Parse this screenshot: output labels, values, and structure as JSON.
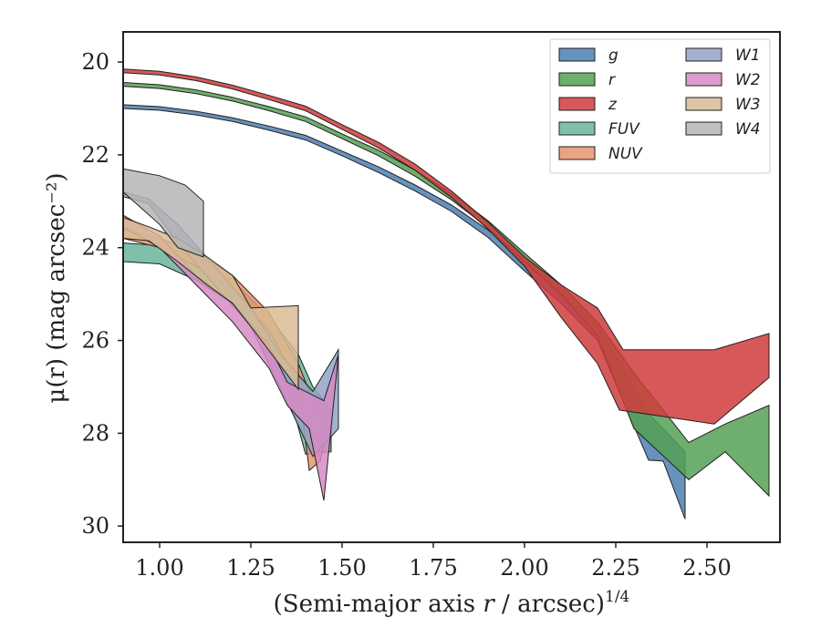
{
  "chart_data": {
    "type": "area",
    "xlabel_main": "(Semi-major axis ",
    "xlabel_var": "r",
    "xlabel_rest": " / arcsec)",
    "xlabel_exp": "1/4",
    "ylabel": "μ(r) (mag arcsec⁻²)",
    "xlim": [
      0.9,
      2.7
    ],
    "ylim": [
      30.35,
      19.35
    ],
    "y_inverted": true,
    "xticks": [
      "1.00",
      "1.25",
      "1.50",
      "1.75",
      "2.00",
      "2.25",
      "2.50"
    ],
    "xtick_values": [
      1.0,
      1.25,
      1.5,
      1.75,
      2.0,
      2.25,
      2.5
    ],
    "yticks": [
      "20",
      "22",
      "24",
      "26",
      "28",
      "30"
    ],
    "ytick_values": [
      20,
      22,
      24,
      26,
      28,
      30
    ],
    "grid": false,
    "legend_position": "top-right",
    "series": [
      {
        "name": "g",
        "color": "#4c7fb0",
        "upper": [
          [
            0.9,
            20.92
          ],
          [
            1.0,
            20.96
          ],
          [
            1.1,
            21.06
          ],
          [
            1.2,
            21.2
          ],
          [
            1.3,
            21.38
          ],
          [
            1.4,
            21.58
          ],
          [
            1.5,
            21.92
          ],
          [
            1.6,
            22.26
          ],
          [
            1.7,
            22.65
          ],
          [
            1.8,
            23.08
          ],
          [
            1.9,
            23.62
          ],
          [
            2.0,
            24.27
          ],
          [
            2.1,
            24.9
          ],
          [
            2.2,
            25.7
          ],
          [
            2.27,
            26.6
          ],
          [
            2.33,
            27.5
          ],
          [
            2.38,
            27.9
          ],
          [
            2.44,
            28.4
          ]
        ],
        "lower": [
          [
            0.9,
            21.0
          ],
          [
            1.0,
            21.04
          ],
          [
            1.1,
            21.14
          ],
          [
            1.2,
            21.28
          ],
          [
            1.3,
            21.47
          ],
          [
            1.4,
            21.68
          ],
          [
            1.5,
            22.02
          ],
          [
            1.6,
            22.38
          ],
          [
            1.7,
            22.78
          ],
          [
            1.8,
            23.22
          ],
          [
            1.9,
            23.78
          ],
          [
            2.0,
            24.5
          ],
          [
            2.1,
            25.2
          ],
          [
            2.2,
            26.0
          ],
          [
            2.27,
            27.3
          ],
          [
            2.34,
            28.58
          ],
          [
            2.38,
            28.6
          ],
          [
            2.44,
            29.85
          ]
        ]
      },
      {
        "name": "r",
        "color": "#55a055",
        "upper": [
          [
            0.9,
            20.44
          ],
          [
            1.0,
            20.49
          ],
          [
            1.1,
            20.6
          ],
          [
            1.2,
            20.76
          ],
          [
            1.3,
            20.96
          ],
          [
            1.4,
            21.18
          ],
          [
            1.5,
            21.55
          ],
          [
            1.6,
            21.9
          ],
          [
            1.7,
            22.33
          ],
          [
            1.8,
            22.83
          ],
          [
            1.9,
            23.42
          ],
          [
            2.0,
            24.12
          ],
          [
            2.1,
            24.8
          ],
          [
            2.2,
            25.6
          ],
          [
            2.3,
            26.7
          ],
          [
            2.45,
            28.2
          ],
          [
            2.55,
            27.8
          ],
          [
            2.67,
            27.4
          ]
        ],
        "lower": [
          [
            0.9,
            20.52
          ],
          [
            1.0,
            20.57
          ],
          [
            1.1,
            20.68
          ],
          [
            1.2,
            20.84
          ],
          [
            1.3,
            21.05
          ],
          [
            1.4,
            21.28
          ],
          [
            1.5,
            21.65
          ],
          [
            1.6,
            22.02
          ],
          [
            1.7,
            22.46
          ],
          [
            1.8,
            22.97
          ],
          [
            1.9,
            23.57
          ],
          [
            2.0,
            24.3
          ],
          [
            2.1,
            25.0
          ],
          [
            2.2,
            25.9
          ],
          [
            2.3,
            27.9
          ],
          [
            2.45,
            29.0
          ],
          [
            2.55,
            28.4
          ],
          [
            2.67,
            29.35
          ]
        ]
      },
      {
        "name": "z",
        "color": "#d03b3b",
        "upper": [
          [
            0.9,
            20.15
          ],
          [
            1.0,
            20.2
          ],
          [
            1.1,
            20.32
          ],
          [
            1.2,
            20.5
          ],
          [
            1.3,
            20.72
          ],
          [
            1.4,
            20.95
          ],
          [
            1.5,
            21.35
          ],
          [
            1.6,
            21.73
          ],
          [
            1.7,
            22.2
          ],
          [
            1.8,
            22.78
          ],
          [
            1.9,
            23.45
          ],
          [
            2.0,
            24.2
          ],
          [
            2.1,
            24.8
          ],
          [
            2.2,
            25.3
          ],
          [
            2.27,
            26.2
          ],
          [
            2.52,
            26.2
          ],
          [
            2.67,
            25.85
          ]
        ],
        "lower": [
          [
            0.9,
            20.23
          ],
          [
            1.0,
            20.28
          ],
          [
            1.1,
            20.4
          ],
          [
            1.2,
            20.58
          ],
          [
            1.3,
            20.81
          ],
          [
            1.4,
            21.05
          ],
          [
            1.5,
            21.45
          ],
          [
            1.6,
            21.85
          ],
          [
            1.7,
            22.33
          ],
          [
            1.8,
            22.92
          ],
          [
            1.9,
            23.6
          ],
          [
            2.0,
            24.4
          ],
          [
            2.1,
            25.5
          ],
          [
            2.2,
            26.5
          ],
          [
            2.26,
            27.5
          ],
          [
            2.52,
            27.8
          ],
          [
            2.67,
            26.8
          ]
        ]
      },
      {
        "name": "FUV",
        "color": "#6ab59b",
        "upper": [
          [
            0.9,
            23.9
          ],
          [
            1.0,
            23.95
          ],
          [
            1.1,
            24.2
          ],
          [
            1.2,
            24.7
          ],
          [
            1.3,
            25.5
          ],
          [
            1.38,
            26.3
          ],
          [
            1.42,
            27.0
          ],
          [
            1.47,
            27.5
          ]
        ],
        "lower": [
          [
            0.9,
            24.3
          ],
          [
            1.0,
            24.35
          ],
          [
            1.1,
            24.7
          ],
          [
            1.2,
            25.2
          ],
          [
            1.3,
            26.2
          ],
          [
            1.36,
            27.3
          ],
          [
            1.4,
            28.45
          ],
          [
            1.47,
            28.4
          ]
        ]
      },
      {
        "name": "NUV",
        "color": "#e8946d",
        "upper": [
          [
            0.9,
            23.6
          ],
          [
            1.0,
            23.8
          ],
          [
            1.1,
            24.1
          ],
          [
            1.2,
            24.6
          ],
          [
            1.3,
            25.4
          ],
          [
            1.38,
            26.5
          ],
          [
            1.42,
            27.3
          ],
          [
            1.46,
            27.8
          ]
        ],
        "lower": [
          [
            0.9,
            23.8
          ],
          [
            1.0,
            24.0
          ],
          [
            1.1,
            24.4
          ],
          [
            1.2,
            24.9
          ],
          [
            1.3,
            25.8
          ],
          [
            1.38,
            26.9
          ],
          [
            1.41,
            28.8
          ],
          [
            1.44,
            28.6
          ]
        ]
      },
      {
        "name": "W1",
        "color": "#93a3c6",
        "upper": [
          [
            0.9,
            22.8
          ],
          [
            0.97,
            22.95
          ],
          [
            1.05,
            23.5
          ],
          [
            1.15,
            24.4
          ],
          [
            1.25,
            25.3
          ],
          [
            1.33,
            26.3
          ],
          [
            1.42,
            27.1
          ],
          [
            1.49,
            26.2
          ]
        ],
        "lower": [
          [
            0.9,
            22.9
          ],
          [
            0.97,
            23.05
          ],
          [
            1.05,
            23.9
          ],
          [
            1.15,
            24.8
          ],
          [
            1.25,
            25.7
          ],
          [
            1.33,
            27.0
          ],
          [
            1.42,
            28.5
          ],
          [
            1.49,
            27.9
          ]
        ]
      },
      {
        "name": "W2",
        "color": "#d68bc4",
        "upper": [
          [
            0.9,
            23.3
          ],
          [
            1.0,
            23.75
          ],
          [
            1.1,
            24.6
          ],
          [
            1.2,
            25.2
          ],
          [
            1.3,
            26.1
          ],
          [
            1.35,
            26.9
          ],
          [
            1.45,
            27.3
          ],
          [
            1.49,
            26.3
          ]
        ],
        "lower": [
          [
            0.9,
            23.55
          ],
          [
            1.0,
            24.0
          ],
          [
            1.1,
            24.8
          ],
          [
            1.2,
            25.6
          ],
          [
            1.3,
            26.6
          ],
          [
            1.35,
            27.4
          ],
          [
            1.41,
            27.9
          ],
          [
            1.45,
            29.45
          ]
        ]
      },
      {
        "name": "W3",
        "color": "#d9bb94",
        "upper": [
          [
            0.9,
            23.35
          ],
          [
            0.97,
            23.55
          ],
          [
            1.05,
            23.8
          ],
          [
            1.13,
            24.2
          ],
          [
            1.2,
            24.6
          ],
          [
            1.25,
            25.3
          ],
          [
            1.38,
            25.25
          ]
        ],
        "lower": [
          [
            0.9,
            23.8
          ],
          [
            0.97,
            23.85
          ],
          [
            1.05,
            24.3
          ],
          [
            1.13,
            24.8
          ],
          [
            1.2,
            25.2
          ],
          [
            1.26,
            25.8
          ],
          [
            1.38,
            27.05
          ]
        ]
      },
      {
        "name": "W4",
        "color": "#b5b5b5",
        "upper": [
          [
            0.9,
            22.3
          ],
          [
            1.0,
            22.45
          ],
          [
            1.07,
            22.65
          ],
          [
            1.12,
            23.0
          ]
        ],
        "lower": [
          [
            0.9,
            22.8
          ],
          [
            1.0,
            23.5
          ],
          [
            1.05,
            24.0
          ],
          [
            1.12,
            24.2
          ]
        ]
      }
    ]
  }
}
